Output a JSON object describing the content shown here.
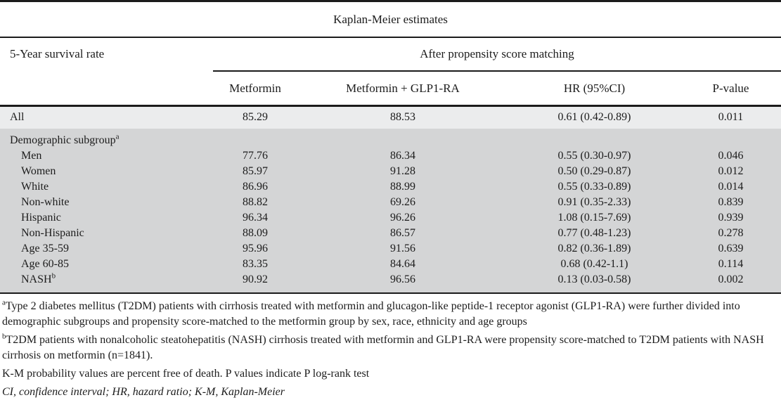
{
  "table": {
    "title": "Kaplan-Meier estimates",
    "row_header": "5-Year survival rate",
    "span_header": "After propensity score matching",
    "columns": {
      "metformin": "Metformin",
      "combo": "Metformin + GLP1-RA",
      "hr": "HR (95%CI)",
      "p": "P-value"
    },
    "all_row": {
      "label": "All",
      "metformin": "85.29",
      "combo": "88.53",
      "hr": "0.61 (0.42-0.89)",
      "p": "0.011"
    },
    "subgroup": {
      "label": "Demographic subgroup",
      "sup": "a",
      "rows": [
        {
          "label": "Men",
          "metformin": "77.76",
          "combo": "86.34",
          "hr": "0.55 (0.30-0.97)",
          "p": "0.046"
        },
        {
          "label": "Women",
          "metformin": "85.97",
          "combo": "91.28",
          "hr": "0.50 (0.29-0.87)",
          "p": "0.012"
        },
        {
          "label": "White",
          "metformin": "86.96",
          "combo": "88.99",
          "hr": "0.55 (0.33-0.89)",
          "p": "0.014"
        },
        {
          "label": "Non-white",
          "metformin": "88.82",
          "combo": "69.26",
          "hr": "0.91 (0.35-2.33)",
          "p": "0.839"
        },
        {
          "label": "Hispanic",
          "metformin": "96.34",
          "combo": "96.26",
          "hr": "1.08 (0.15-7.69)",
          "p": "0.939"
        },
        {
          "label": "Non-Hispanic",
          "metformin": "88.09",
          "combo": "86.57",
          "hr": "0.77 (0.48-1.23)",
          "p": "0.278"
        },
        {
          "label": "Age 35-59",
          "metformin": "95.96",
          "combo": "91.56",
          "hr": "0.82 (0.36-1.89)",
          "p": "0.639"
        },
        {
          "label": "Age 60-85",
          "metformin": "83.35",
          "combo": "84.64",
          "hr": "0.68 (0.42-1.1)",
          "p": "0.114"
        },
        {
          "label": "NASH",
          "sup": "b",
          "metformin": "90.92",
          "combo": "96.56",
          "hr": "0.13 (0.03-0.58)",
          "p": "0.002"
        }
      ]
    }
  },
  "footnotes": {
    "a_marker": "a",
    "a_text": "Type 2 diabetes mellitus (T2DM) patients with cirrhosis treated with metformin and glucagon-like peptide-1 receptor agonist (GLP1-RA) were further divided into demographic subgroups and propensity score-matched to the metformin group by sex, race, ethnicity and age groups",
    "b_marker": "b",
    "b_text": "T2DM patients with nonalcoholic steatohepatitis (NASH) cirrhosis treated with metformin and GLP1-RA were propensity score-matched to T2DM patients with NASH cirrhosis on metformin (n=1841).",
    "km_note": "K-M probability values are percent free of death. P values indicate P log-rank test",
    "abbreviations": "CI, confidence interval; HR, hazard ratio; K-M, Kaplan-Meier"
  },
  "colors": {
    "all_row_bg": "#ebeced",
    "subgroup_bg": "#d4d5d6",
    "rule": "#1b1b1b"
  }
}
